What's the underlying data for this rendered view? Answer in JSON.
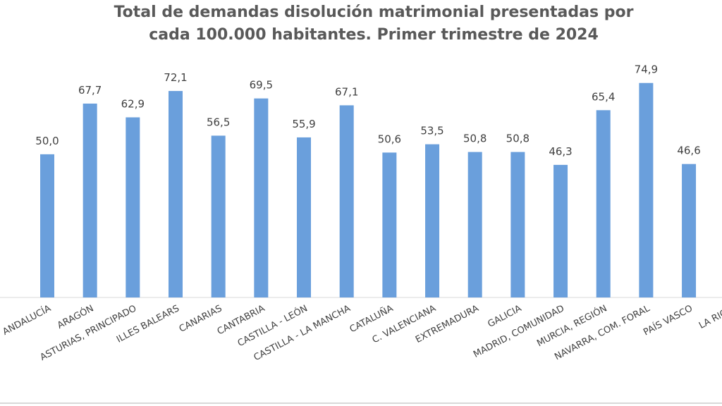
{
  "chart_data": {
    "type": "bar",
    "title": [
      "Total de demandas disolución matrimonial presentadas por",
      "cada 100.000 habitantes. Primer trimestre de 2024"
    ],
    "categories": [
      "ANDALUCÍA",
      "ARAGÓN",
      "ASTURIAS, PRINCIPADO",
      "ILLES BALEARS",
      "CANARIAS",
      "CANTABRIA",
      "CASTILLA - LEÓN",
      "CASTILLA - LA MANCHA",
      "CATALUÑA",
      "C. VALENCIANA",
      "EXTREMADURA",
      "GALICIA",
      "MADRID, COMUNIDAD",
      "MURCIA, REGIÓN",
      "NAVARRA, COM. FORAL",
      "PAÍS VASCO",
      "LA RIOJA"
    ],
    "values": [
      50.0,
      67.7,
      62.9,
      72.1,
      56.5,
      69.5,
      55.9,
      67.1,
      50.6,
      53.5,
      50.8,
      50.8,
      46.3,
      65.4,
      74.9,
      46.6,
      null
    ],
    "value_labels": [
      "50,0",
      "67,7",
      "62,9",
      "72,1",
      "56,5",
      "69,5",
      "55,9",
      "67,1",
      "50,6",
      "53,5",
      "50,8",
      "50,8",
      "46,3",
      "65,4",
      "74,9",
      "46,6",
      null
    ],
    "color": "#6a9fdc",
    "ylim": [
      0,
      80
    ]
  }
}
